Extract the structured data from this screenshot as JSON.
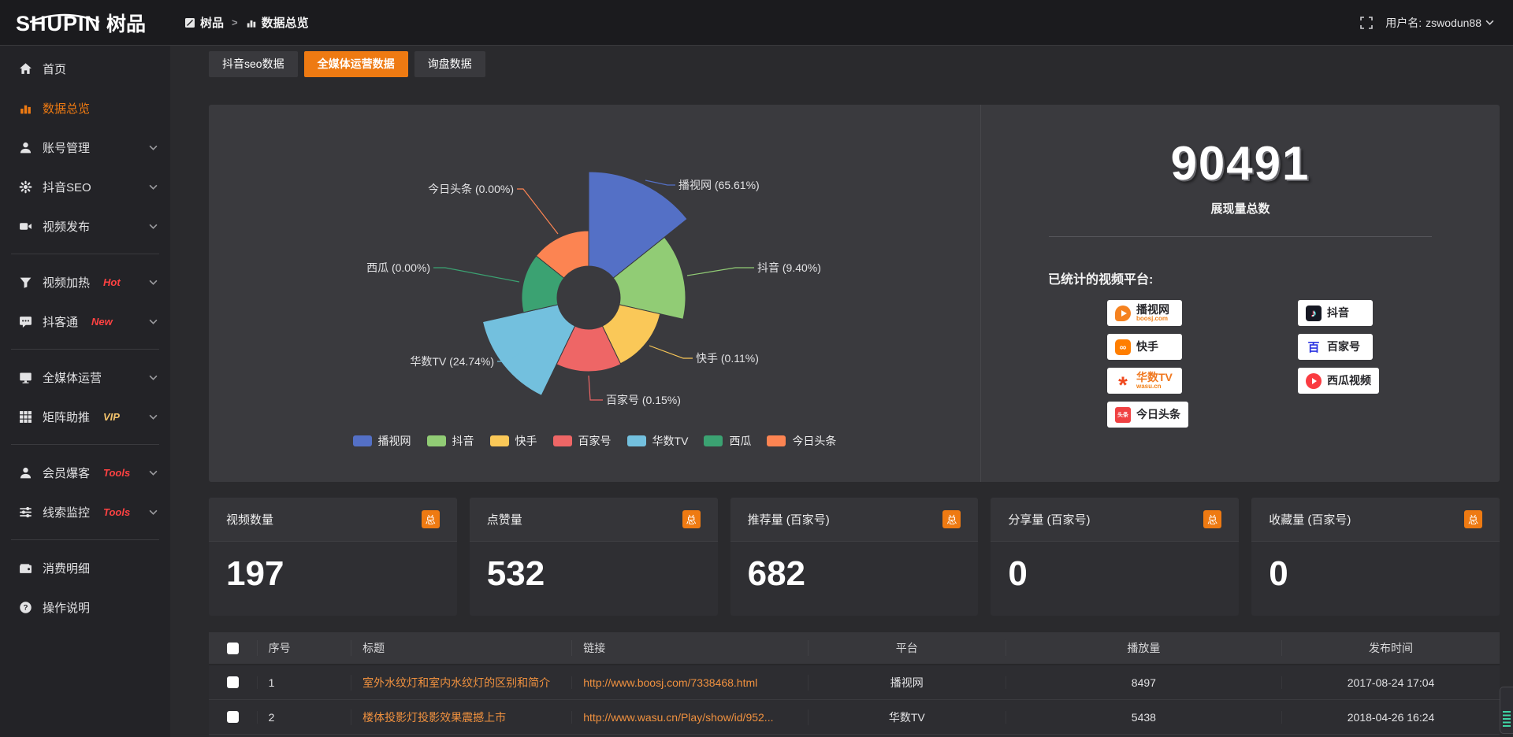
{
  "theme": {
    "accent": "#ee7a12",
    "link": "#f0913f",
    "tag_red": "#ff4242",
    "tag_gold": "#f2c26b",
    "panel_bg": "#3a3a3e"
  },
  "topbar": {
    "logo_text": "SHUPIN",
    "logo_suffix": "树品",
    "breadcrumb": [
      "树品",
      "数据总览"
    ],
    "breadcrumb_sep": ">",
    "username_label": "用户名:",
    "username": "zswodun88"
  },
  "sidebar": {
    "items": [
      {
        "key": "home",
        "icon": "home-icon",
        "label": "首页"
      },
      {
        "key": "data-overview",
        "icon": "bar-chart-icon",
        "label": "数据总览",
        "active": true
      },
      {
        "key": "account",
        "icon": "user-icon",
        "label": "账号管理",
        "chevron": true
      },
      {
        "key": "douyin-seo",
        "icon": "gear-icon",
        "label": "抖音SEO",
        "chevron": true
      },
      {
        "key": "video-publish",
        "icon": "video-icon",
        "label": "视频发布",
        "chevron": true
      },
      {
        "divider": true
      },
      {
        "key": "video-heat",
        "icon": "funnel-icon",
        "label": "视频加热",
        "tag": "Hot",
        "tag_color": "#ff4242",
        "chevron": true
      },
      {
        "key": "douketong",
        "icon": "chat-icon",
        "label": "抖客通",
        "tag": "New",
        "tag_color": "#ff4242",
        "chevron": true
      },
      {
        "divider": true
      },
      {
        "key": "media-ops",
        "icon": "monitor-icon",
        "label": "全媒体运营",
        "chevron": true
      },
      {
        "key": "matrix-boost",
        "icon": "grid-icon",
        "label": "矩阵助推",
        "tag": "VIP",
        "tag_color": "#f2c26b",
        "chevron": true
      },
      {
        "divider": true
      },
      {
        "key": "member-baoke",
        "icon": "member-icon",
        "label": "会员爆客",
        "tag": "Tools",
        "tag_color": "#ff4242",
        "chevron": true
      },
      {
        "key": "clue-monitor",
        "icon": "sliders-icon",
        "label": "线索监控",
        "tag": "Tools",
        "tag_color": "#ff4242",
        "chevron": true
      },
      {
        "divider": true
      },
      {
        "key": "consume-detail",
        "icon": "wallet-icon",
        "label": "消费明细"
      },
      {
        "key": "help",
        "icon": "question-icon",
        "label": "操作说明"
      }
    ]
  },
  "tabs": [
    {
      "key": "douyin-seo-data",
      "label": "抖音seo数据",
      "active": false
    },
    {
      "key": "media-ops-data",
      "label": "全媒体运营数据",
      "active": true
    },
    {
      "key": "inquiry-data",
      "label": "询盘数据",
      "active": false
    }
  ],
  "chart_data": {
    "type": "pie",
    "subtype": "nightingale-rose",
    "title": "",
    "legend_position": "bottom-center",
    "label_format": "{name} ({percent})",
    "items": [
      {
        "key": "boosj",
        "name": "播视网",
        "value_percent": 65.61,
        "percent_label": "65.61%",
        "color": "#5470c6"
      },
      {
        "key": "douyin",
        "name": "抖音",
        "value_percent": 9.4,
        "percent_label": "9.40%",
        "color": "#91cc75"
      },
      {
        "key": "kuaishou",
        "name": "快手",
        "value_percent": 0.11,
        "percent_label": "0.11%",
        "color": "#fac858"
      },
      {
        "key": "baijiahao",
        "name": "百家号",
        "value_percent": 0.15,
        "percent_label": "0.15%",
        "color": "#ee6666"
      },
      {
        "key": "wasu",
        "name": "华数TV",
        "value_percent": 24.74,
        "percent_label": "24.74%",
        "color": "#73c0de"
      },
      {
        "key": "xigua",
        "name": "西瓜",
        "value_percent": 0.0,
        "percent_label": "0.00%",
        "color": "#3ba272"
      },
      {
        "key": "toutiao",
        "name": "今日头条",
        "value_percent": 0.0,
        "percent_label": "0.00%",
        "color": "#fc8452"
      }
    ]
  },
  "summary": {
    "total": "90491",
    "total_label": "展现量总数",
    "platforms_title": "已统计的视频平台:",
    "platform_columns": [
      [
        {
          "key": "boosj",
          "name": "播视网",
          "sub": "boosj.com"
        },
        {
          "key": "kuaishou",
          "name": "快手"
        },
        {
          "key": "wasu",
          "name": "华数TV",
          "sub": "wasu.cn"
        },
        {
          "key": "toutiao",
          "name": "今日头条"
        }
      ],
      [
        {
          "key": "douyin",
          "name": "抖音"
        },
        {
          "key": "baijiahao",
          "name": "百家号"
        },
        {
          "key": "xigua",
          "name": "西瓜视频"
        }
      ]
    ]
  },
  "stats": [
    {
      "key": "video-count",
      "label": "视频数量",
      "badge": "总",
      "value": "197"
    },
    {
      "key": "likes",
      "label": "点赞量",
      "badge": "总",
      "value": "532"
    },
    {
      "key": "recommends",
      "label": "推荐量 (百家号)",
      "badge": "总",
      "value": "682"
    },
    {
      "key": "shares",
      "label": "分享量 (百家号)",
      "badge": "总",
      "value": "0"
    },
    {
      "key": "favorites",
      "label": "收藏量 (百家号)",
      "badge": "总",
      "value": "0"
    }
  ],
  "table": {
    "headers": [
      "序号",
      "标题",
      "链接",
      "平台",
      "播放量",
      "发布时间"
    ],
    "rows": [
      {
        "seq": "1",
        "title": "室外水纹灯和室内水纹灯的区别和简介",
        "link": "http://www.boosj.com/7338468.html",
        "platform": "播视网",
        "plays": "8497",
        "time": "2017-08-24 17:04"
      },
      {
        "seq": "2",
        "title": "楼体投影灯投影效果震撼上市",
        "link": "http://www.wasu.cn/Play/show/id/952...",
        "platform": "华数TV",
        "plays": "5438",
        "time": "2018-04-26 16:24"
      }
    ]
  }
}
